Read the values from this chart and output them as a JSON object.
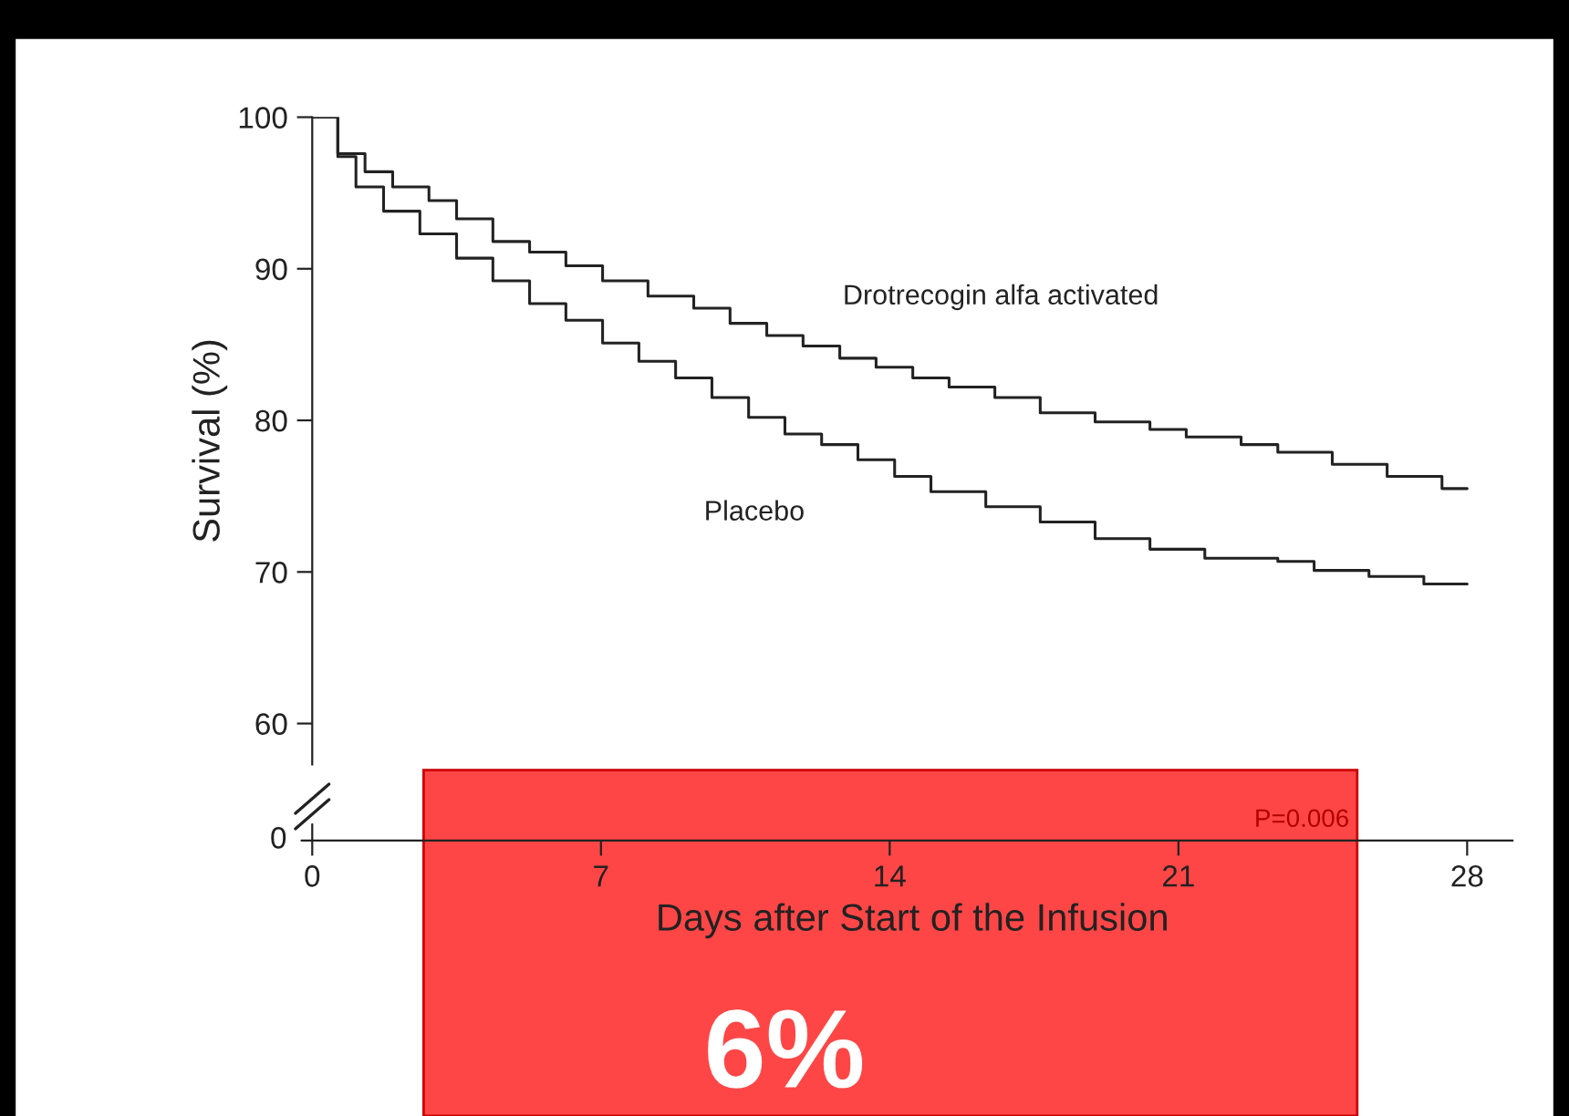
{
  "chart_data": {
    "type": "step",
    "xlabel": "Days after Start of the Infusion",
    "ylabel": "Survival (%)",
    "xlim": [
      0,
      29.1
    ],
    "xticks": [
      0,
      7,
      14,
      21,
      28
    ],
    "ylim": [
      57.3,
      100
    ],
    "yticks": [
      60,
      70,
      80,
      90,
      100
    ],
    "grid": false,
    "legend": false,
    "marker": "none",
    "line_style": "solid",
    "series": [
      {
        "name": "Drotrecogin alfa activated",
        "color": "#222222",
        "x": [
          0,
          0.62,
          1.28,
          1.95,
          2.83,
          3.5,
          4.38,
          5.27,
          6.15,
          7.04,
          8.14,
          9.25,
          10.13,
          11.02,
          11.9,
          12.79,
          13.67,
          14.56,
          15.44,
          16.55,
          17.65,
          18.98,
          20.31,
          21.19,
          22.52,
          23.41,
          24.73,
          26.06,
          27.39,
          28
        ],
        "values": [
          100,
          97.6,
          96.4,
          95.4,
          94.5,
          93.3,
          91.8,
          91.1,
          90.2,
          89.2,
          88.2,
          87.4,
          86.4,
          85.6,
          84.9,
          84.1,
          83.5,
          82.8,
          82.2,
          81.5,
          80.5,
          79.9,
          79.4,
          78.9,
          78.4,
          77.9,
          77.1,
          76.3,
          75.5,
          75.5
        ]
      },
      {
        "name": "Placebo",
        "color": "#222222",
        "x": [
          0,
          0.62,
          1.06,
          1.73,
          2.61,
          3.5,
          4.38,
          5.27,
          6.15,
          7.04,
          7.92,
          8.81,
          9.69,
          10.58,
          11.46,
          12.35,
          13.23,
          14.12,
          15,
          16.33,
          17.65,
          18.98,
          20.31,
          21.64,
          23.41,
          24.29,
          25.62,
          26.95,
          28
        ],
        "values": [
          100,
          97.4,
          95.4,
          93.8,
          92.3,
          90.7,
          89.2,
          87.7,
          86.6,
          85.1,
          83.9,
          82.8,
          81.5,
          80.2,
          79.1,
          78.4,
          77.4,
          76.3,
          75.3,
          74.3,
          73.3,
          72.2,
          71.5,
          70.9,
          70.7,
          70.1,
          69.7,
          69.2,
          69.2
        ]
      }
    ],
    "annotations": [
      "0",
      "P=0.006",
      "6%"
    ]
  }
}
